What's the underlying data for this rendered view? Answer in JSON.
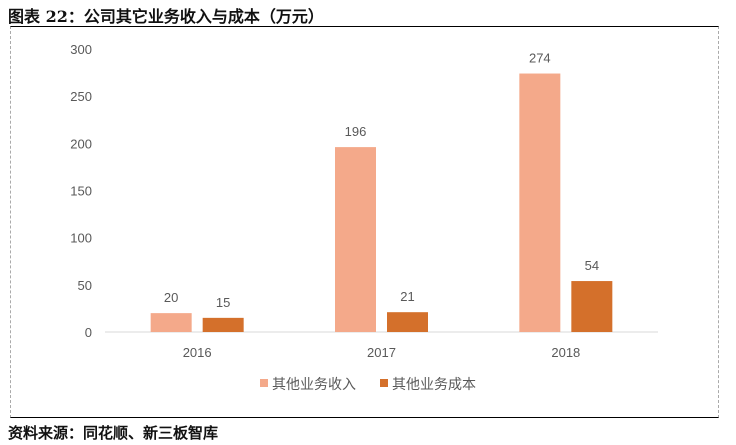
{
  "title": "图表 22：公司其它业务收入与成本（万元）",
  "source": "资料来源：同花顺、新三板智库",
  "chart_data": {
    "type": "bar",
    "title": "",
    "categories": [
      "2016",
      "2017",
      "2018"
    ],
    "series": [
      {
        "name": "其他业务收入",
        "values": [
          20,
          196,
          274
        ],
        "color": "#F4A98A"
      },
      {
        "name": "其他业务成本",
        "values": [
          15,
          21,
          54
        ],
        "color": "#D4702B"
      }
    ],
    "ylim": [
      0,
      300
    ],
    "yticks": [
      0,
      50,
      100,
      150,
      200,
      250,
      300
    ],
    "grid": false,
    "legend": "bottom",
    "data_labels": true
  }
}
